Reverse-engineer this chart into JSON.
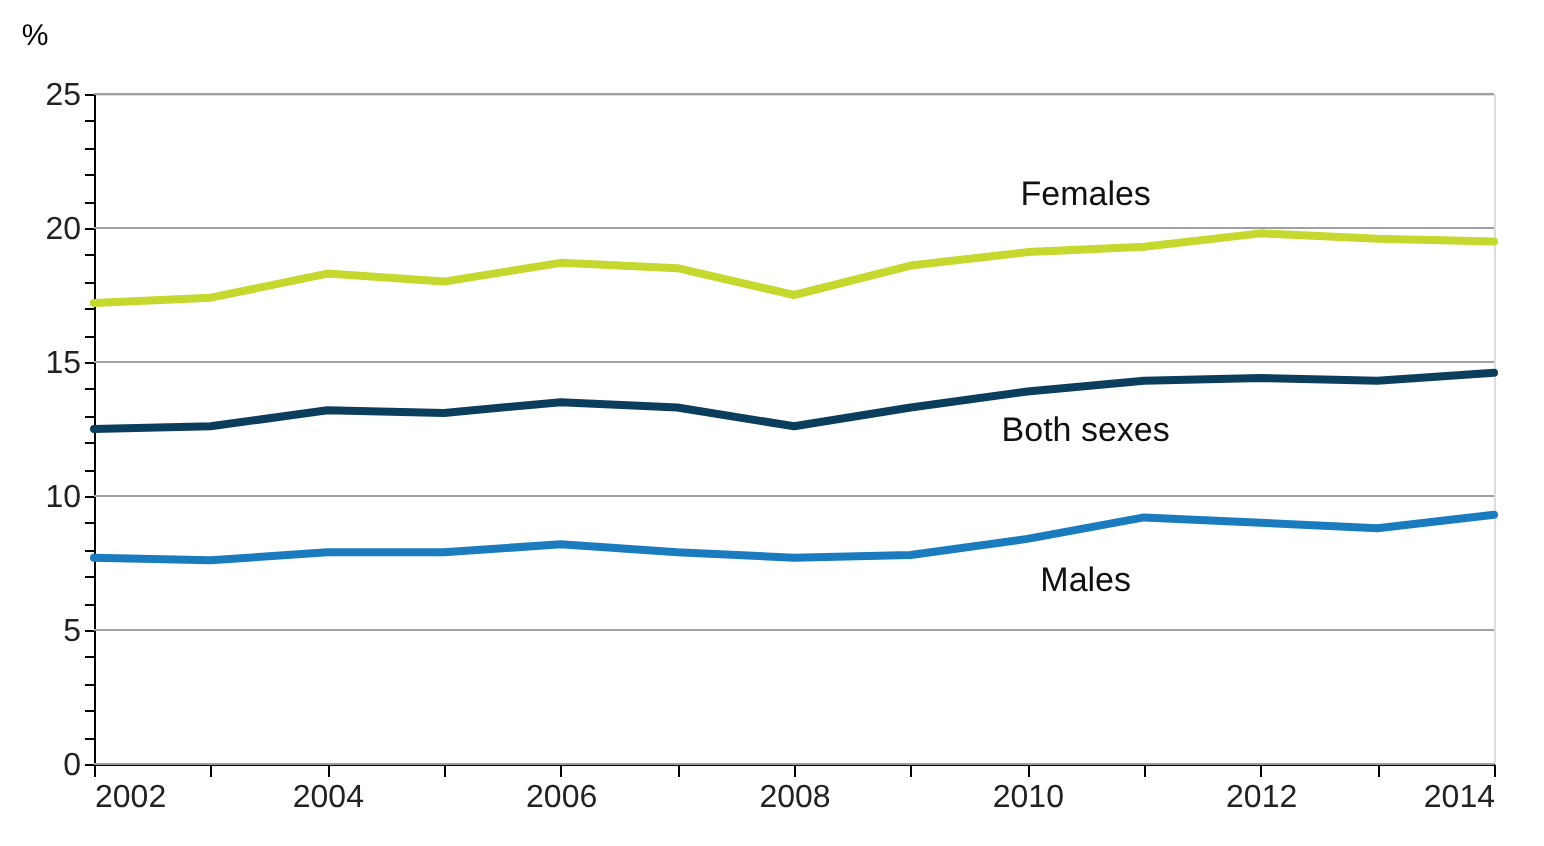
{
  "chart_data": {
    "type": "line",
    "ylabel": "%",
    "x": [
      2002,
      2003,
      2004,
      2005,
      2006,
      2007,
      2008,
      2009,
      2010,
      2011,
      2012,
      2013,
      2014
    ],
    "series": [
      {
        "name": "Females",
        "color": "#c4d82e",
        "values": [
          17.2,
          17.4,
          18.3,
          18.0,
          18.7,
          18.5,
          17.5,
          18.6,
          19.1,
          19.3,
          19.8,
          19.6,
          19.5
        ]
      },
      {
        "name": "Both sexes",
        "color": "#0b3d5c",
        "values": [
          12.5,
          12.6,
          13.2,
          13.1,
          13.5,
          13.3,
          12.6,
          13.3,
          13.9,
          14.3,
          14.4,
          14.3,
          14.6
        ]
      },
      {
        "name": "Males",
        "color": "#1a7cbf",
        "values": [
          7.7,
          7.6,
          7.9,
          7.9,
          8.2,
          7.9,
          7.7,
          7.8,
          8.4,
          9.2,
          9.0,
          8.8,
          9.3
        ]
      }
    ],
    "xlim": [
      2002,
      2014
    ],
    "xticks": [
      2002,
      {
        "value": 2003,
        "label": null
      },
      2004,
      {
        "value": 2005,
        "label": null
      },
      2006,
      {
        "value": 2007,
        "label": null
      },
      2008,
      {
        "value": 2009,
        "label": null
      },
      2010,
      {
        "value": 2011,
        "label": null
      },
      2012,
      {
        "value": 2013,
        "label": null
      },
      2014
    ],
    "ylim": [
      0,
      25
    ],
    "yticks": [
      0,
      {
        "value": 1,
        "label": null
      },
      {
        "value": 2,
        "label": null
      },
      {
        "value": 3,
        "label": null
      },
      {
        "value": 4,
        "label": null
      },
      5,
      {
        "value": 6,
        "label": null
      },
      {
        "value": 7,
        "label": null
      },
      {
        "value": 8,
        "label": null
      },
      {
        "value": 9,
        "label": null
      },
      10,
      {
        "value": 11,
        "label": null
      },
      {
        "value": 12,
        "label": null
      },
      {
        "value": 13,
        "label": null
      },
      {
        "value": 14,
        "label": null
      },
      15,
      {
        "value": 16,
        "label": null
      },
      {
        "value": 17,
        "label": null
      },
      {
        "value": 18,
        "label": null
      },
      {
        "value": 19,
        "label": null
      },
      20,
      {
        "value": 21,
        "label": null
      },
      {
        "value": 22,
        "label": null
      },
      {
        "value": 23,
        "label": null
      },
      {
        "value": 24,
        "label": null
      },
      25
    ],
    "grid": "y",
    "legend": false,
    "line_style": "solid",
    "marker": "none"
  }
}
